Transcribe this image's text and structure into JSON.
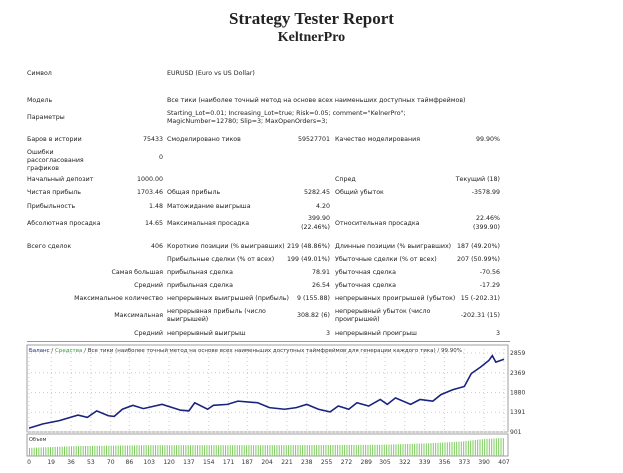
{
  "header": {
    "title": "Strategy Tester Report",
    "subtitle": "KeltnerPro"
  },
  "info": {
    "symbol_label": "Символ",
    "symbol": "EURUSD (Euro vs US Dollar)",
    "model_label": "Модель",
    "model": "Все тики (наиболее точный метод на основе всех наименьших доступных таймфреймов)",
    "params_label": "Параметры",
    "params": "Starting_Lot=0.01; Increasing_Lot=true; Risk=0.05; comment=\"KelnerPro\"; MagicNumber=12780; Slip=3; MaxOpenOrders=3;",
    "bars_label": "Баров в истории",
    "bars": "75433",
    "ticks_label": "Смоделировано тиков",
    "ticks": "59527701",
    "quality_label": "Качество моделирования",
    "quality": "99.90%",
    "errors_label": "Ошибки рассогласования графиков",
    "errors": "0"
  },
  "stats": {
    "deposit_label": "Начальный депозит",
    "deposit": "1000.00",
    "spread_label": "Спред",
    "spread": "Текущий (18)",
    "net_label": "Чистая прибыль",
    "net": "1703.46",
    "gross_profit_label": "Общая прибыль",
    "gross_profit": "5282.45",
    "gross_loss_label": "Общий убыток",
    "gross_loss": "-3578.99",
    "pf_label": "Прибыльность",
    "pf": "1.48",
    "expect_label": "Матожидание выигрыша",
    "expect": "4.20",
    "abs_dd_label": "Абсолютная просадка",
    "abs_dd": "14.65",
    "max_dd_label": "Максимальная просадка",
    "max_dd": "399.90",
    "max_dd2": "(22.46%)",
    "rel_dd_label": "Относительная просадка",
    "rel_dd": "22.46%",
    "rel_dd2": "(399.90)",
    "trades_label": "Всего сделок",
    "trades": "406",
    "short_label": "Короткие позиции (% выигравших)",
    "short": "219 (48.86%)",
    "long_label": "Длинные позиции (% выигравших)",
    "long": "187 (49.20%)",
    "profit_trades_label": "Прибыльные сделки (% от всех)",
    "profit_trades": "199 (49.01%)",
    "loss_trades_label": "Убыточные сделки (% от всех)",
    "loss_trades": "207 (50.99%)",
    "largest_label": "Самая большая",
    "largest_p_label": "прибыльная сделка",
    "largest_p": "78.91",
    "largest_l_label": "убыточная сделка",
    "largest_l": "-70.56",
    "avg_label": "Средний",
    "avg_p_label": "прибыльная сделка",
    "avg_p": "26.54",
    "avg_l_label": "убыточная сделка",
    "avg_l": "-17.29",
    "maxcount_label": "Максимальное количество",
    "maxcount_w_label": "непрерывных выигрышей (прибыль)",
    "maxcount_w": "9 (155.88)",
    "maxcount_l_label": "непрерывных проигрышей (убыток)",
    "maxcount_l": "15 (-202.31)",
    "maxcons_label": "Максимальная",
    "maxcons_w_label": "непрерывная прибыль (число выигрышей)",
    "maxcons_w": "308.82 (6)",
    "maxcons_l_label": "непрерывный убыток (число проигрышей)",
    "maxcons_l": "-202.31 (15)",
    "avgcons_label": "Средний",
    "avgcons_w_label": "непрерывный выигрыш",
    "avgcons_w": "3",
    "avgcons_l_label": "непрерывный проигрыш",
    "avgcons_l": "3"
  },
  "chart_data": {
    "type": "line",
    "legend": {
      "balance": "Баланс",
      "equity": "Средства",
      "rest": "Все тики (наиболее точный метод на основе всех наименьших доступных таймфреймов для генерации каждого тика)",
      "quality": "99.90%"
    },
    "volume_label": "Объем",
    "x_ticks": [
      0,
      19,
      36,
      53,
      70,
      86,
      103,
      120,
      137,
      154,
      171,
      187,
      204,
      221,
      238,
      255,
      272,
      289,
      305,
      322,
      339,
      356,
      373,
      390,
      407
    ],
    "y_ticks": [
      901,
      1391,
      1880,
      2369,
      2859
    ],
    "xlim": [
      0,
      407
    ],
    "ylim": [
      901,
      2859
    ],
    "colors": {
      "balance": "#1a237e",
      "equity": "#2e9e2e",
      "volume": "#7ccc5c"
    },
    "balance": [
      [
        0,
        998
      ],
      [
        12,
        1102
      ],
      [
        26,
        1183
      ],
      [
        42,
        1320
      ],
      [
        50,
        1264
      ],
      [
        58,
        1425
      ],
      [
        68,
        1304
      ],
      [
        73,
        1288
      ],
      [
        80,
        1465
      ],
      [
        89,
        1562
      ],
      [
        98,
        1481
      ],
      [
        114,
        1586
      ],
      [
        130,
        1441
      ],
      [
        137,
        1425
      ],
      [
        142,
        1626
      ],
      [
        153,
        1465
      ],
      [
        158,
        1562
      ],
      [
        170,
        1586
      ],
      [
        179,
        1666
      ],
      [
        196,
        1626
      ],
      [
        206,
        1505
      ],
      [
        219,
        1465
      ],
      [
        229,
        1505
      ],
      [
        238,
        1586
      ],
      [
        248,
        1465
      ],
      [
        258,
        1400
      ],
      [
        265,
        1545
      ],
      [
        274,
        1465
      ],
      [
        281,
        1626
      ],
      [
        291,
        1545
      ],
      [
        301,
        1707
      ],
      [
        307,
        1586
      ],
      [
        314,
        1747
      ],
      [
        327,
        1586
      ],
      [
        335,
        1707
      ],
      [
        346,
        1666
      ],
      [
        353,
        1828
      ],
      [
        363,
        1948
      ],
      [
        373,
        2029
      ],
      [
        379,
        2351
      ],
      [
        387,
        2512
      ],
      [
        394,
        2673
      ],
      [
        397,
        2794
      ],
      [
        400,
        2633
      ],
      [
        407,
        2703
      ]
    ],
    "volume_relative": [
      [
        0,
        0.45
      ],
      [
        40,
        0.55
      ],
      [
        100,
        0.6
      ],
      [
        200,
        0.6
      ],
      [
        300,
        0.62
      ],
      [
        340,
        0.7
      ],
      [
        370,
        0.8
      ],
      [
        390,
        0.95
      ],
      [
        407,
        1.0
      ]
    ]
  }
}
